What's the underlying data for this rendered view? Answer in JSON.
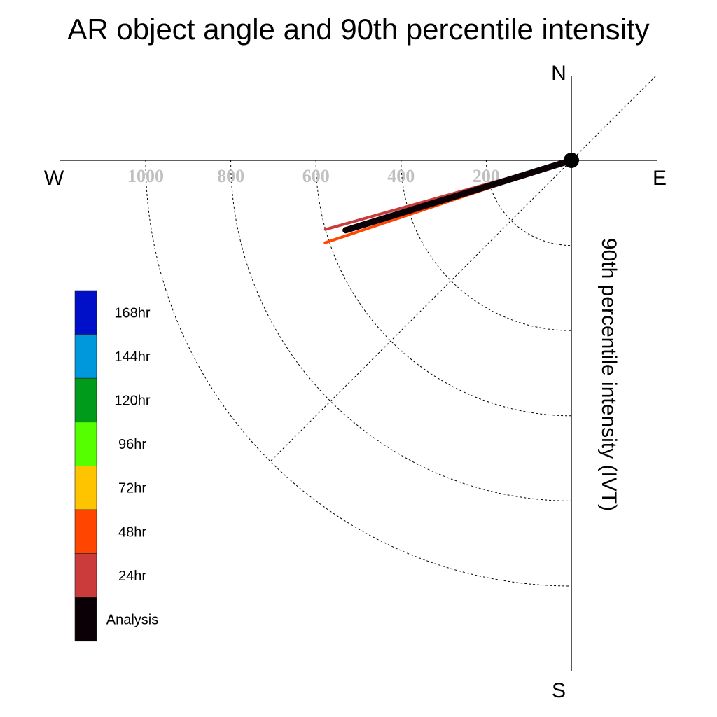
{
  "chart_data": {
    "type": "polar-line",
    "title": "AR object angle and 90th percentile intensity",
    "ylabel": "90th percentile intensity (IVT)",
    "compass": {
      "north": "N",
      "south": "S",
      "east": "E",
      "west": "W"
    },
    "radial_ticks": [
      200,
      400,
      600,
      800,
      1000
    ],
    "rlim": [
      0,
      1000
    ],
    "series": [
      {
        "name": "24hr",
        "angle_deg_below_west": 15.7,
        "intensity": 600,
        "color": "#cc3b3b"
      },
      {
        "name": "48hr",
        "angle_deg_below_west": 18.5,
        "intensity": 610,
        "color": "#ff4500"
      },
      {
        "name": "Analysis",
        "angle_deg_below_west": 17.2,
        "intensity": 555,
        "color": "#0a0006"
      }
    ],
    "legend": [
      {
        "label": "168hr",
        "color": "#0010c8"
      },
      {
        "label": "144hr",
        "color": "#0098dc"
      },
      {
        "label": "120hr",
        "color": "#009b1a"
      },
      {
        "label": "96hr",
        "color": "#55ff00"
      },
      {
        "label": "72hr",
        "color": "#ffc400"
      },
      {
        "label": "48hr",
        "color": "#ff4500"
      },
      {
        "label": "24hr",
        "color": "#cc3b3b"
      },
      {
        "label": "Analysis",
        "color": "#0a0006"
      }
    ],
    "legend_position": "bottom-left"
  }
}
